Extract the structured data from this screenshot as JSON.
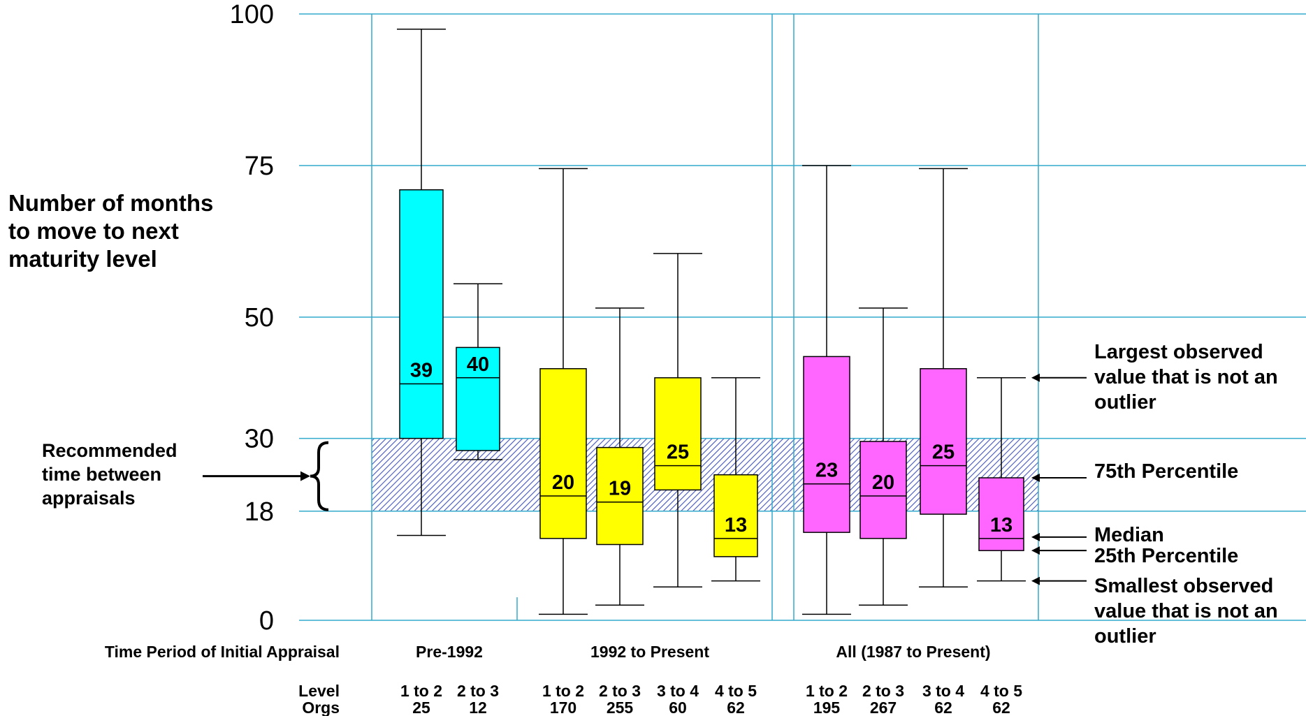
{
  "chart_data": {
    "type": "box",
    "ylabel": [
      "Number of months",
      "to move to next",
      "maturity level"
    ],
    "y_ticks": [
      0,
      18,
      30,
      50,
      75,
      100
    ],
    "ylim": [
      0,
      100
    ],
    "recommended_band": {
      "range": [
        18,
        30
      ],
      "label": [
        "Recommended",
        "time between",
        "appraisals"
      ]
    },
    "time_period_title": "Time Period of Initial Appraisal",
    "level_row_title": "Level",
    "orgs_row_title": "Orgs",
    "groups": [
      {
        "name": "Pre-1992",
        "boxes": [
          {
            "level": "1 to 2",
            "orgs": "25",
            "color": "#00FFFF",
            "min": 14,
            "q1": 30,
            "median": 39,
            "q3": 71,
            "max": 97.5,
            "median_label": "39"
          },
          {
            "level": "2 to 3",
            "orgs": "12",
            "color": "#00FFFF",
            "min": 26.5,
            "q1": 28,
            "median": 40,
            "q3": 45,
            "max": 55.5,
            "median_label": "40"
          }
        ]
      },
      {
        "name": "1992 to Present",
        "boxes": [
          {
            "level": "1 to 2",
            "orgs": "170",
            "color": "#FFFF00",
            "min": 1,
            "q1": 13.5,
            "median": 20.5,
            "q3": 41.5,
            "max": 74.5,
            "median_label": "20"
          },
          {
            "level": "2 to 3",
            "orgs": "255",
            "color": "#FFFF00",
            "min": 2.5,
            "q1": 12.5,
            "median": 19.5,
            "q3": 28.5,
            "max": 51.5,
            "median_label": "19"
          },
          {
            "level": "3 to 4",
            "orgs": "60",
            "color": "#FFFF00",
            "min": 5.5,
            "q1": 21.5,
            "median": 25.5,
            "q3": 40,
            "max": 60.5,
            "median_label": "25"
          },
          {
            "level": "4 to 5",
            "orgs": "62",
            "color": "#FFFF00",
            "min": 6.5,
            "q1": 10.5,
            "median": 13.5,
            "q3": 24,
            "max": 40,
            "median_label": "13"
          }
        ]
      },
      {
        "name": "All (1987 to Present)",
        "boxes": [
          {
            "level": "1 to 2",
            "orgs": "195",
            "color": "#FF66FF",
            "min": 1,
            "q1": 14.5,
            "median": 22.5,
            "q3": 43.5,
            "max": 75,
            "median_label": "23"
          },
          {
            "level": "2 to 3",
            "orgs": "267",
            "color": "#FF66FF",
            "min": 2.5,
            "q1": 13.5,
            "median": 20.5,
            "q3": 29.5,
            "max": 51.5,
            "median_label": "20"
          },
          {
            "level": "3 to 4",
            "orgs": "62",
            "color": "#FF66FF",
            "min": 5.5,
            "q1": 17.5,
            "median": 25.5,
            "q3": 41.5,
            "max": 74.5,
            "median_label": "25"
          },
          {
            "level": "4 to 5",
            "orgs": "62",
            "color": "#FF66FF",
            "min": 6.5,
            "q1": 11.5,
            "median": 13.5,
            "q3": 23.5,
            "max": 40,
            "median_label": "13"
          }
        ]
      }
    ],
    "legend": {
      "largest": [
        "Largest observed",
        "value that is not an",
        "outlier"
      ],
      "p75": "75th Percentile",
      "median": "Median",
      "p25": "25th Percentile",
      "smallest": [
        "Smallest observed",
        "value that is not an",
        "outlier"
      ]
    },
    "colors": {
      "grid": "#33AACC",
      "band": "#4455BB",
      "pre1992": "#00FFFF",
      "present": "#FFFF00",
      "all": "#FF66FF"
    }
  }
}
